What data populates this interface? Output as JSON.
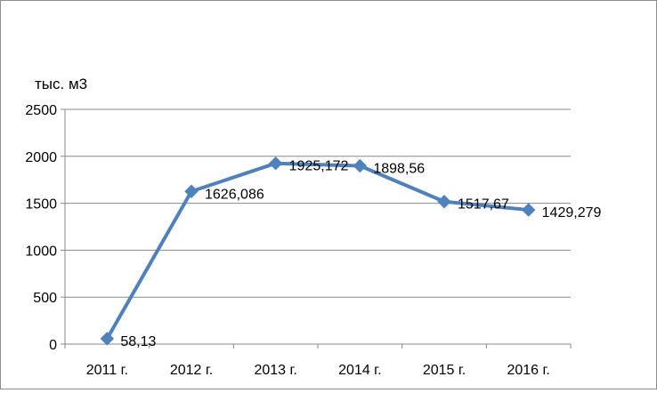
{
  "chart_data": {
    "type": "line",
    "title": "",
    "xlabel": "",
    "ylabel": "тыс. м3",
    "categories": [
      "2011 г.",
      "2012 г.",
      "2013 г.",
      "2014 г.",
      "2015 г.",
      "2016 г."
    ],
    "values": [
      58.13,
      1626.086,
      1925.172,
      1898.56,
      1517.67,
      1429.279
    ],
    "data_labels": [
      "58,13",
      "1626,086",
      "1925,172",
      "1898,56",
      "1517,67",
      "1429,279"
    ],
    "ylim": [
      0,
      2500
    ],
    "yticks": [
      0,
      500,
      1000,
      1500,
      2000,
      2500
    ],
    "ytick_labels": [
      "0",
      "500",
      "1000",
      "1500",
      "2000",
      "2500"
    ],
    "grid": true,
    "legend": "none",
    "marker": "diamond",
    "series_color": "#4f81bd",
    "grid_color": "#898989"
  }
}
